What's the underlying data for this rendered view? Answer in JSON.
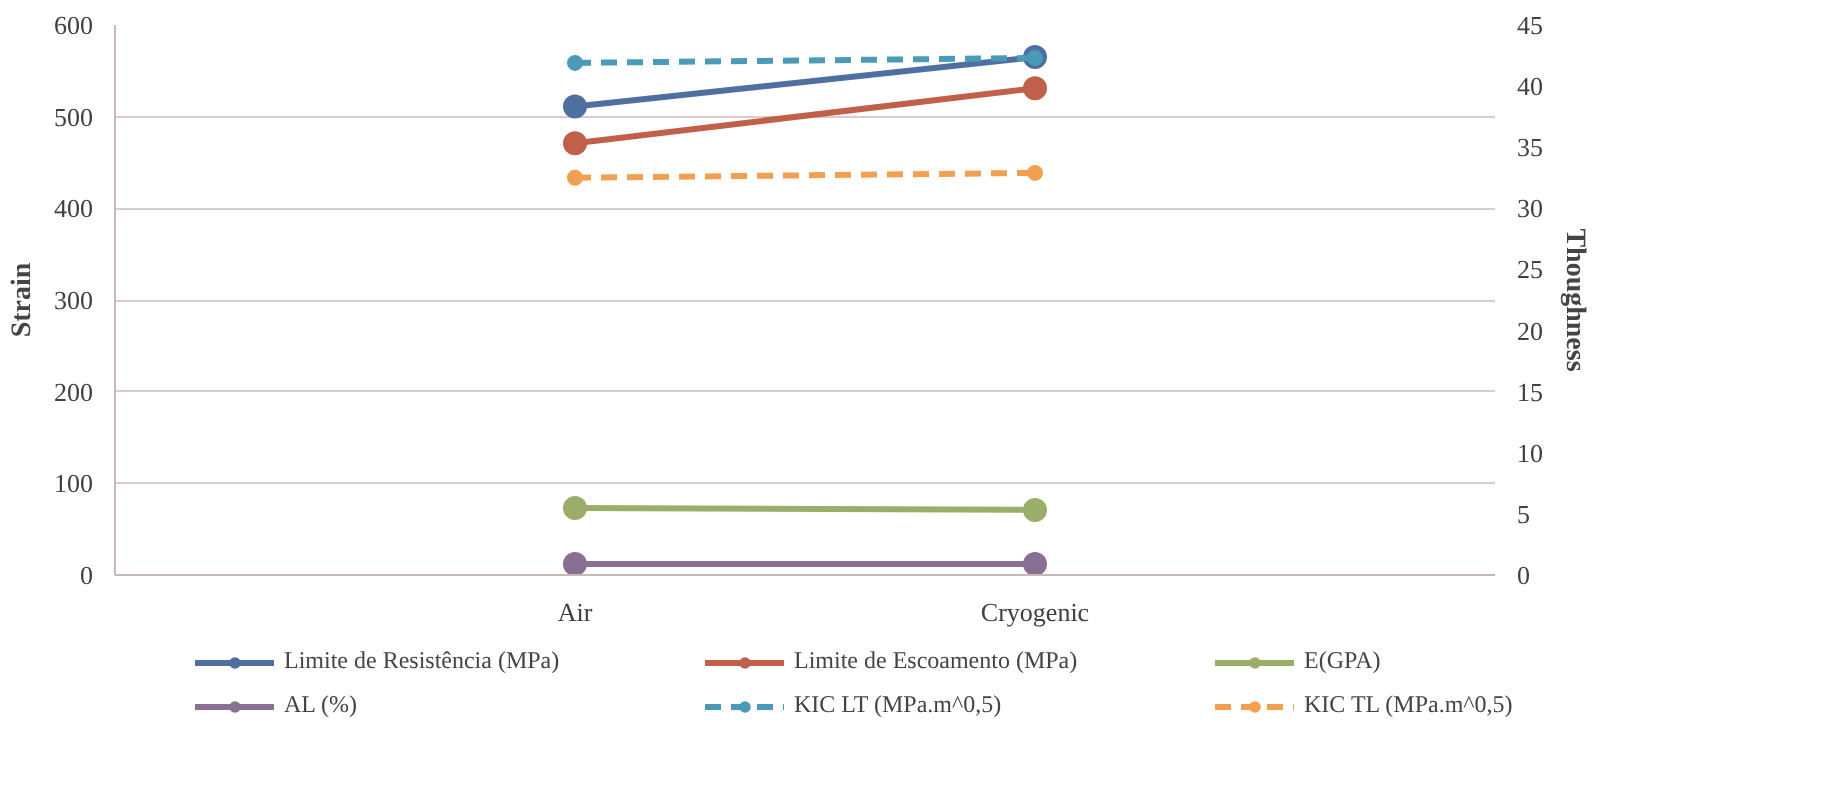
{
  "chart_data": {
    "type": "line",
    "xlabel": null,
    "ylabel": "Strain",
    "y2label": "Thoughness",
    "categories": [
      "Air",
      "Cryogenic"
    ],
    "series": [
      {
        "name": "Limite de Resistência (MPa)",
        "color": "#4f6fa0",
        "values": [
          511,
          565
        ]
      },
      {
        "name": "Limite de Escoamento (MPa)",
        "color": "#c0604a",
        "values": [
          471,
          531
        ]
      },
      {
        "name": "E(GPA)",
        "color": "#9aae6a",
        "values": [
          73,
          71
        ]
      },
      {
        "name": "AL (%)",
        "color": "#8a6f94",
        "values": [
          12,
          12
        ]
      },
      {
        "name": "KIC LT (MPa.m^0,5)",
        "color": "#4a9ab8",
        "values": [
          41.9,
          42.3
        ],
        "axis": "y2",
        "line_style": "dashed"
      },
      {
        "name": "KIC TL (MPa.m^0,5)",
        "color": "#f0a050",
        "values": [
          32.5,
          32.9
        ],
        "axis": "y2",
        "line_style": "dashed"
      }
    ],
    "ylim": [
      0,
      600
    ],
    "yticks": [
      0,
      100,
      200,
      300,
      400,
      500,
      600
    ],
    "y2lim": [
      0,
      45
    ],
    "y2ticks": [
      0,
      5,
      10,
      15,
      20,
      25,
      30,
      35,
      40,
      45
    ],
    "grid": "y",
    "legend": "bottom",
    "marker": "circle",
    "line_style": "solid"
  }
}
